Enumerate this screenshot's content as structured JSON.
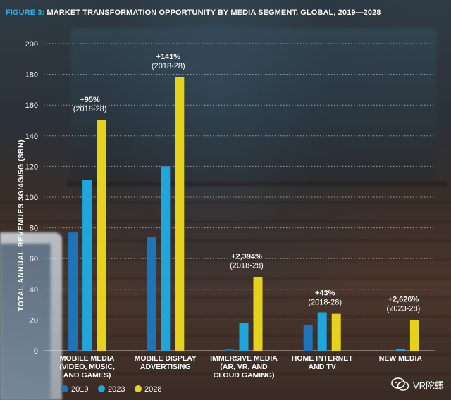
{
  "title_prefix": "FIGURE 3:",
  "title_text": "MARKET TRANSFORMATION OPPORTUNITY BY MEDIA SEGMENT, GLOBAL, 2019—2028",
  "watermark": "VR陀螺",
  "colors": {
    "title_accent": "#2bb1e6",
    "bar_2019": "#1e74b8",
    "bar_2023": "#1fa6dc",
    "bar_2028": "#e6d21b",
    "gridline": "#ffffff",
    "text": "#ffffff"
  },
  "chart_data": {
    "type": "bar",
    "title": "MARKET TRANSFORMATION OPPORTUNITY BY MEDIA SEGMENT, GLOBAL, 2019—2028",
    "ylabel": "TOTAL ANNUAL REVENUES 3G/4G/5G ($BN)",
    "xlabel": "",
    "ylim": [
      0,
      200
    ],
    "yticks": [
      0,
      20,
      40,
      60,
      80,
      100,
      120,
      140,
      160,
      180,
      200
    ],
    "grid": true,
    "legend_position": "bottom-left",
    "categories": [
      [
        "MOBILE MEDIA",
        "(VIDEO, MUSIC,",
        "AND GAMES)"
      ],
      [
        "MOBILE DISPLAY",
        "ADVERTISING"
      ],
      [
        "IMMERSIVE MEDIA",
        "(AR, VR, AND",
        "CLOUD GAMING)"
      ],
      [
        "HOME INTERNET",
        "AND TV"
      ],
      [
        "NEW MEDIA"
      ]
    ],
    "series": [
      {
        "name": "2019",
        "values": [
          77,
          74,
          1,
          17,
          0
        ]
      },
      {
        "name": "2023",
        "values": [
          111,
          120,
          18,
          25,
          1
        ]
      },
      {
        "name": "2028",
        "values": [
          150,
          178,
          48,
          24,
          20
        ]
      }
    ],
    "annotations": [
      {
        "lines": [
          "+95%",
          "(2018-28)"
        ]
      },
      {
        "lines": [
          "+141%",
          "(2018-28)"
        ]
      },
      {
        "lines": [
          "+2,394%",
          "(2018-28)"
        ]
      },
      {
        "lines": [
          "+43%",
          "(2018-28)"
        ]
      },
      {
        "lines": [
          "+2,626%",
          "(2023-28)"
        ]
      }
    ]
  }
}
